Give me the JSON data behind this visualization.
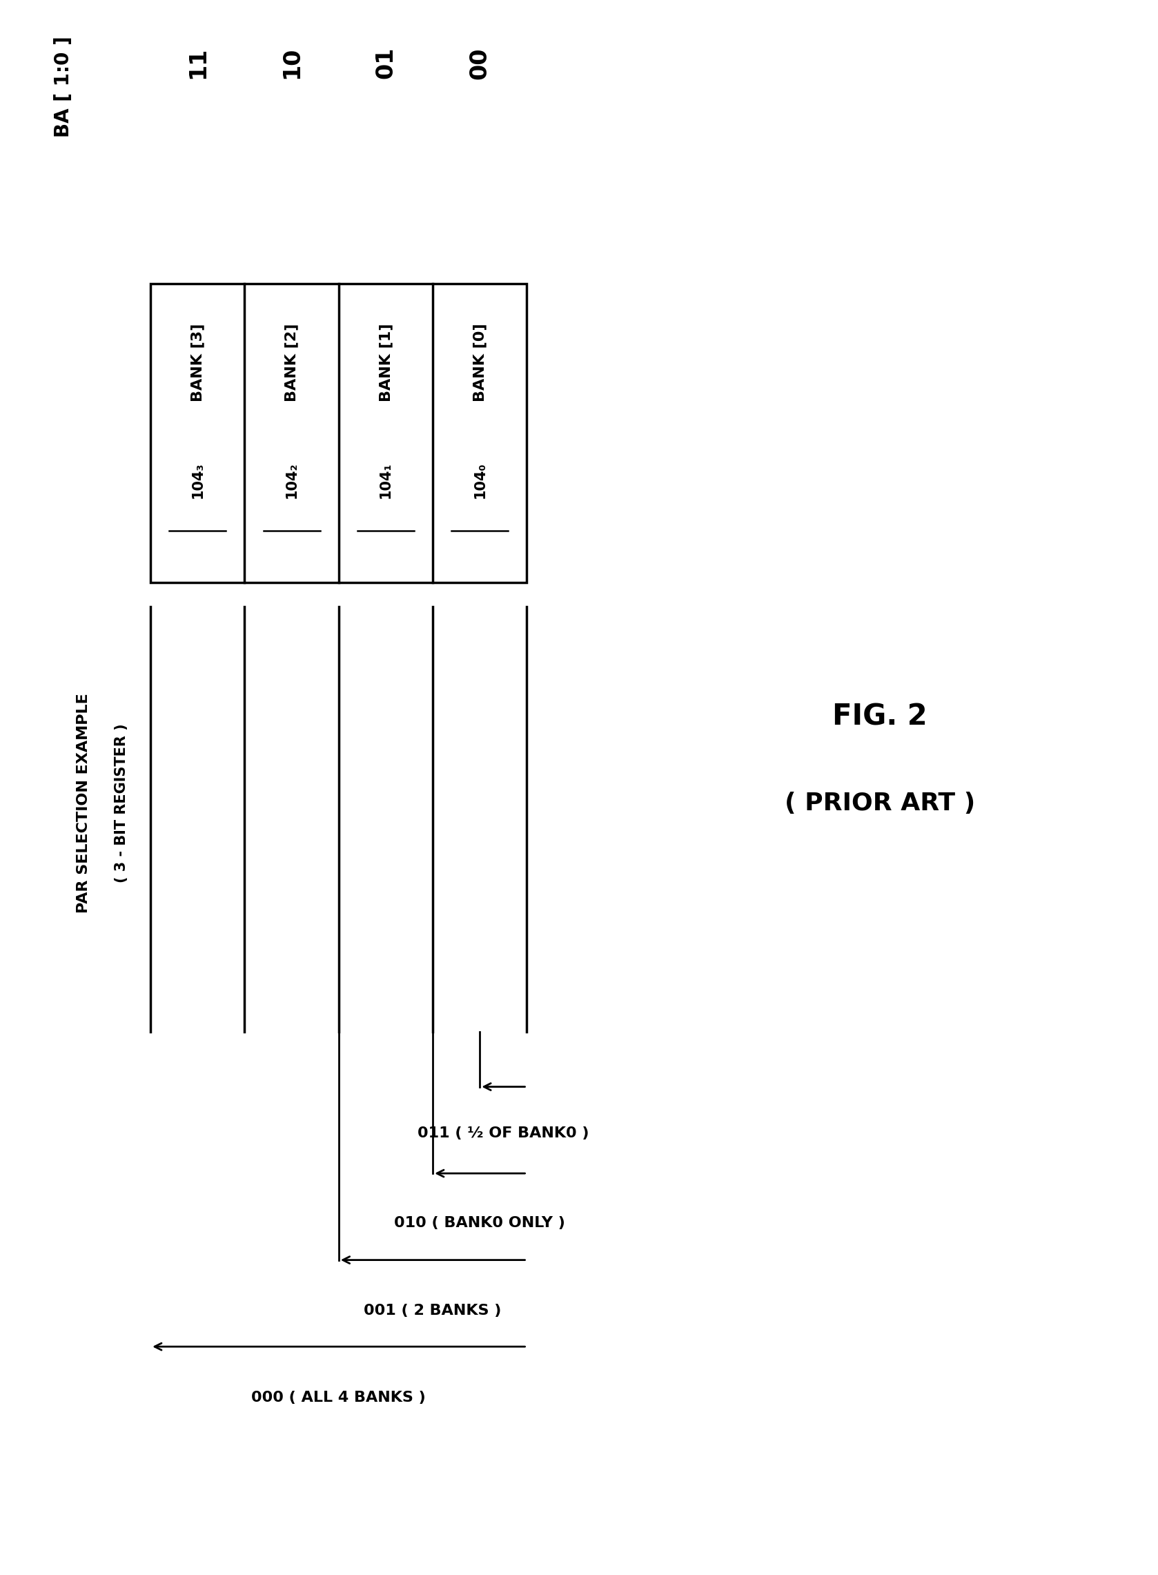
{
  "background_color": "#ffffff",
  "fig_width": 16.78,
  "fig_height": 22.82,
  "ba_label": "BA [ 1:0 ]",
  "ba_values": [
    "11",
    "10",
    "01",
    "00"
  ],
  "bank_labels": [
    "BANK [3]",
    "BANK [2]",
    "BANK [1]",
    "BANK [0]"
  ],
  "bank_sublabels": [
    "104₃",
    "104₂",
    "104₁",
    "104₀"
  ],
  "par_label_line1": "PAR SELECTION EXAMPLE",
  "par_label_line2": "( 3 - BIT REGISTER )",
  "fig_label": "FIG. 2",
  "fig_sublabel": "( PRIOR ART )",
  "arrow_labels": [
    "011 ( ½ OF BANK0 )",
    "010 ( BANK0 ONLY )",
    "001 ( 2 BANKS )",
    "000 ( ALL 4 BANKS )"
  ]
}
